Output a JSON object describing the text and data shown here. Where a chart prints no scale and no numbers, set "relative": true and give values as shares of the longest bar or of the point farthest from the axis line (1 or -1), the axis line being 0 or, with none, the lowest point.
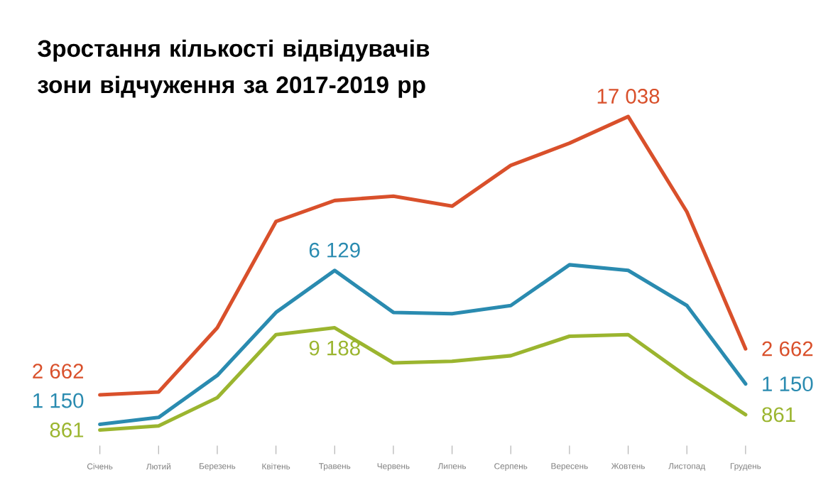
{
  "chart_data": {
    "type": "line",
    "title": "Зростання кількості відвідувачів зони відчуження за 2017-2019 рр",
    "relative": true,
    "marker": "none",
    "line_style": "solid",
    "categories": [
      "Січень",
      "Лютий",
      "Березень",
      "Квітень",
      "Травень",
      "Червень",
      "Липень",
      "Серпень",
      "Вересень",
      "Жовтень",
      "Листопад",
      "Грудень"
    ],
    "series": [
      {
        "color": "#d9502b",
        "values": [
          0.112,
          0.121,
          0.326,
          0.665,
          0.732,
          0.746,
          0.714,
          0.844,
          0.915,
          1.0,
          0.696,
          0.259
        ]
      },
      {
        "color": "#2a8bb0",
        "values": [
          0.018,
          0.04,
          0.174,
          0.375,
          0.509,
          0.375,
          0.371,
          0.397,
          0.527,
          0.509,
          0.397,
          0.147
        ]
      },
      {
        "color": "#9bb52f",
        "values": [
          0.0,
          0.013,
          0.103,
          0.304,
          0.326,
          0.214,
          0.219,
          0.237,
          0.299,
          0.304,
          0.17,
          0.049
        ]
      }
    ],
    "annotations": [
      {
        "text": "2 662",
        "x": "Січень",
        "y": 0.112
      },
      {
        "text": "17 038",
        "x": "Жовтень",
        "y": 1.0
      },
      {
        "text": "2 662",
        "x": "Грудень",
        "y": 0.259
      },
      {
        "text": "1 150",
        "x": "Січень",
        "y": 0.018
      },
      {
        "text": "6 129",
        "x": "Травень",
        "y": 0.509
      },
      {
        "text": "1 150",
        "x": "Грудень",
        "y": 0.147
      },
      {
        "text": "861",
        "x": "Січень",
        "y": 0.0
      },
      {
        "text": "9 188",
        "x": "Травень",
        "y": 0.326
      },
      {
        "text": "861",
        "x": "Грудень",
        "y": 0.049
      }
    ]
  }
}
